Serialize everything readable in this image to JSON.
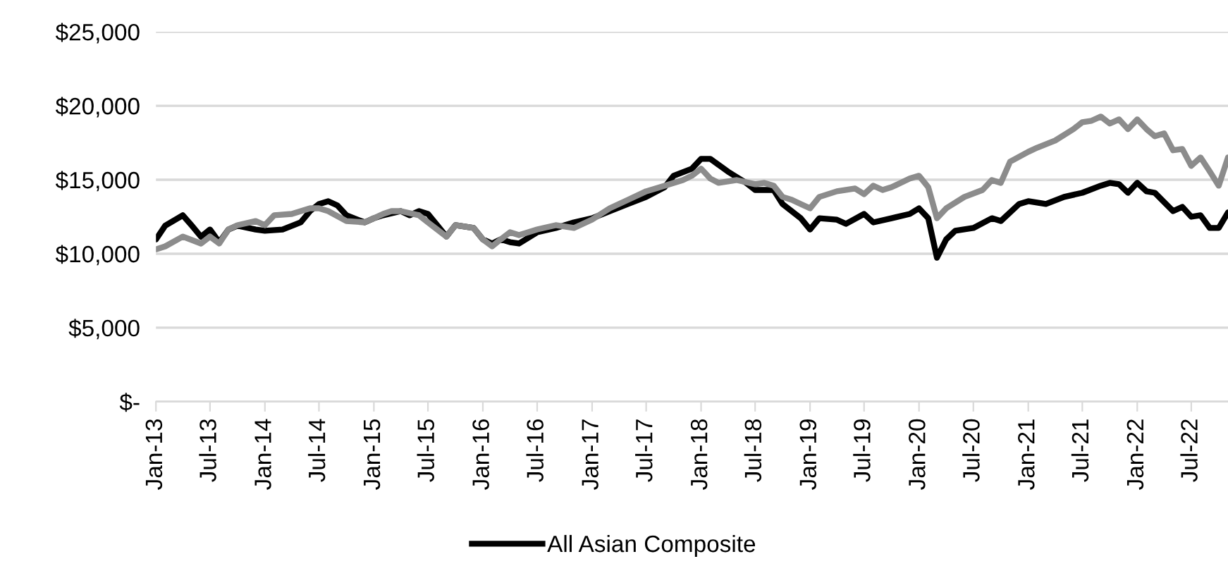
{
  "chart_data": {
    "type": "line",
    "legend": "bottom",
    "grid": "y",
    "marker": "none",
    "line_style": "solid",
    "xlim": [
      "2013-01",
      "2022-11"
    ],
    "xticks": [
      {
        "value": "2013-01",
        "label": "Jan-13"
      },
      {
        "value": "2013-07",
        "label": "Jul-13"
      },
      {
        "value": "2014-01",
        "label": "Jan-14"
      },
      {
        "value": "2014-07",
        "label": "Jul-14"
      },
      {
        "value": "2015-01",
        "label": "Jan-15"
      },
      {
        "value": "2015-07",
        "label": "Jul-15"
      },
      {
        "value": "2016-01",
        "label": "Jan-16"
      },
      {
        "value": "2016-07",
        "label": "Jul-16"
      },
      {
        "value": "2017-01",
        "label": "Jan-17"
      },
      {
        "value": "2017-07",
        "label": "Jul-17"
      },
      {
        "value": "2018-01",
        "label": "Jan-18"
      },
      {
        "value": "2018-07",
        "label": "Jul-18"
      },
      {
        "value": "2019-01",
        "label": "Jan-19"
      },
      {
        "value": "2019-07",
        "label": "Jul-19"
      },
      {
        "value": "2020-01",
        "label": "Jan-20"
      },
      {
        "value": "2020-07",
        "label": "Jul-20"
      },
      {
        "value": "2021-01",
        "label": "Jan-21"
      },
      {
        "value": "2021-07",
        "label": "Jul-21"
      },
      {
        "value": "2022-01",
        "label": "Jan-22"
      },
      {
        "value": "2022-07",
        "label": "Jul-22"
      }
    ],
    "ylim": [
      0,
      25000
    ],
    "yticks": [
      {
        "value": 0,
        "label": "$-"
      },
      {
        "value": 5000,
        "label": "$5,000"
      },
      {
        "value": 10000,
        "label": "$10,000"
      },
      {
        "value": 15000,
        "label": "$15,000"
      },
      {
        "value": 20000,
        "label": "$20,000"
      },
      {
        "value": 25000,
        "label": "$25,000"
      }
    ],
    "series": [
      {
        "name": "All Asian Composite",
        "color": "#000000",
        "x": [
          "2013-01",
          "2013-02",
          "2013-04",
          "2013-05",
          "2013-06",
          "2013-07",
          "2013-08",
          "2013-09",
          "2013-10",
          "2013-12",
          "2014-01",
          "2014-03",
          "2014-05",
          "2014-06",
          "2014-07",
          "2014-08",
          "2014-09",
          "2014-10",
          "2014-12",
          "2015-01",
          "2015-02",
          "2015-04",
          "2015-05",
          "2015-06",
          "2015-07",
          "2015-08",
          "2015-09",
          "2015-10",
          "2015-12",
          "2016-01",
          "2016-02",
          "2016-03",
          "2016-04",
          "2016-05",
          "2016-07",
          "2016-09",
          "2016-11",
          "2017-01",
          "2017-03",
          "2017-05",
          "2017-07",
          "2017-09",
          "2017-10",
          "2017-12",
          "2018-01",
          "2018-02",
          "2018-04",
          "2018-06",
          "2018-07",
          "2018-09",
          "2018-10",
          "2018-12",
          "2019-01",
          "2019-02",
          "2019-04",
          "2019-05",
          "2019-07",
          "2019-08",
          "2019-10",
          "2019-12",
          "2020-01",
          "2020-02",
          "2020-03",
          "2020-04",
          "2020-05",
          "2020-07",
          "2020-09",
          "2020-10",
          "2020-12",
          "2021-01",
          "2021-03",
          "2021-05",
          "2021-07",
          "2021-09",
          "2021-10",
          "2021-11",
          "2021-12",
          "2022-01",
          "2022-02",
          "2022-03",
          "2022-05",
          "2022-06",
          "2022-07",
          "2022-08",
          "2022-09",
          "2022-10",
          "2022-11"
        ],
        "values": [
          10970,
          11900,
          12600,
          11900,
          11150,
          11640,
          10780,
          11640,
          11900,
          11640,
          11550,
          11640,
          12120,
          12880,
          13360,
          13550,
          13260,
          12600,
          12120,
          12400,
          12600,
          12880,
          12600,
          12880,
          12690,
          11930,
          11160,
          11930,
          11740,
          10970,
          10690,
          10970,
          10780,
          10690,
          11450,
          11740,
          12120,
          12400,
          12880,
          13360,
          13840,
          14500,
          15270,
          15750,
          16410,
          16410,
          15550,
          14790,
          14310,
          14310,
          13360,
          12400,
          11640,
          12400,
          12300,
          12020,
          12690,
          12120,
          12400,
          12690,
          13070,
          12400,
          9730,
          10970,
          11550,
          11740,
          12400,
          12210,
          13360,
          13550,
          13360,
          13840,
          14120,
          14600,
          14790,
          14700,
          14120,
          14790,
          14220,
          14120,
          12880,
          13170,
          12500,
          12600,
          11740,
          11740,
          12790
        ]
      },
      {
        "color": "#8c8c8c",
        "x": [
          "2013-01",
          "2013-02",
          "2013-04",
          "2013-06",
          "2013-07",
          "2013-08",
          "2013-09",
          "2013-10",
          "2013-12",
          "2014-01",
          "2014-02",
          "2014-04",
          "2014-06",
          "2014-07",
          "2014-08",
          "2014-10",
          "2014-12",
          "2015-01",
          "2015-02",
          "2015-03",
          "2015-04",
          "2015-06",
          "2015-07",
          "2015-09",
          "2015-10",
          "2015-12",
          "2016-01",
          "2016-02",
          "2016-03",
          "2016-04",
          "2016-05",
          "2016-06",
          "2016-07",
          "2016-09",
          "2016-11",
          "2017-01",
          "2017-03",
          "2017-05",
          "2017-07",
          "2017-09",
          "2017-11",
          "2017-12",
          "2018-01",
          "2018-02",
          "2018-03",
          "2018-05",
          "2018-07",
          "2018-08",
          "2018-09",
          "2018-10",
          "2018-11",
          "2018-12",
          "2019-01",
          "2019-02",
          "2019-04",
          "2019-06",
          "2019-07",
          "2019-08",
          "2019-09",
          "2019-10",
          "2019-12",
          "2020-01",
          "2020-02",
          "2020-03",
          "2020-04",
          "2020-06",
          "2020-08",
          "2020-09",
          "2020-10",
          "2020-11",
          "2021-01",
          "2021-02",
          "2021-04",
          "2021-06",
          "2021-07",
          "2021-08",
          "2021-09",
          "2021-10",
          "2021-11",
          "2021-12",
          "2022-01",
          "2022-02",
          "2022-03",
          "2022-04",
          "2022-05",
          "2022-06",
          "2022-07",
          "2022-08",
          "2022-09",
          "2022-10",
          "2022-11"
        ],
        "values": [
          10300,
          10500,
          11160,
          10690,
          11160,
          10690,
          11640,
          11930,
          12210,
          11930,
          12600,
          12690,
          13070,
          13070,
          12880,
          12210,
          12120,
          12400,
          12690,
          12880,
          12880,
          12600,
          12120,
          11160,
          11930,
          11740,
          10970,
          10500,
          10970,
          11450,
          11260,
          11450,
          11640,
          11930,
          11740,
          12310,
          13070,
          13640,
          14220,
          14600,
          14980,
          15270,
          15750,
          15080,
          14790,
          14980,
          14700,
          14790,
          14600,
          13840,
          13640,
          13360,
          13070,
          13840,
          14220,
          14410,
          14030,
          14600,
          14310,
          14500,
          15080,
          15270,
          14500,
          12400,
          13070,
          13840,
          14310,
          14980,
          14790,
          16220,
          16890,
          17180,
          17650,
          18420,
          18890,
          18990,
          19270,
          18800,
          19080,
          18420,
          19080,
          18420,
          17940,
          18130,
          16990,
          17080,
          15940,
          16510,
          15560,
          14600,
          16510
        ]
      }
    ]
  }
}
